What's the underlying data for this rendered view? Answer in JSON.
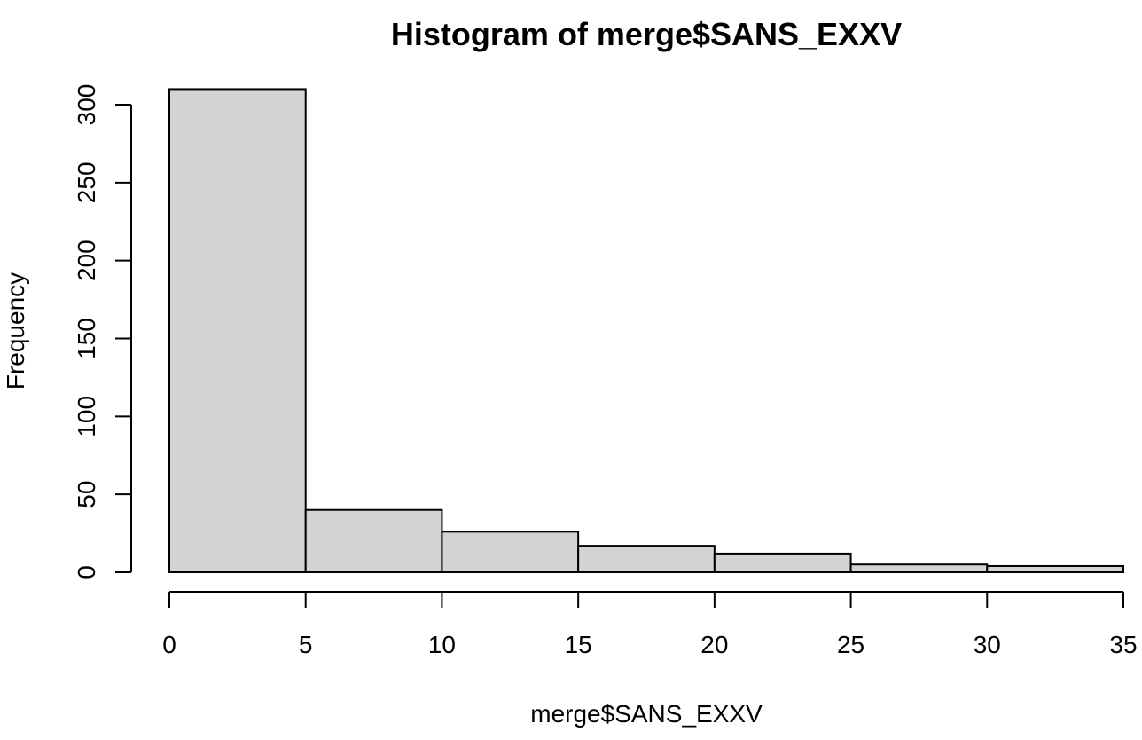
{
  "chart_data": {
    "type": "bar",
    "title": "Histogram of merge$SANS_EXXV",
    "xlabel": "merge$SANS_EXXV",
    "ylabel": "Frequency",
    "bins": [
      {
        "from": 0,
        "to": 5,
        "count": 310
      },
      {
        "from": 5,
        "to": 10,
        "count": 40
      },
      {
        "from": 10,
        "to": 15,
        "count": 26
      },
      {
        "from": 15,
        "to": 20,
        "count": 17
      },
      {
        "from": 20,
        "to": 25,
        "count": 12
      },
      {
        "from": 25,
        "to": 30,
        "count": 5
      },
      {
        "from": 30,
        "to": 35,
        "count": 4
      }
    ],
    "xlim": [
      0,
      35
    ],
    "ylim": [
      0,
      310
    ],
    "x_ticks": [
      0,
      5,
      10,
      15,
      20,
      25,
      30,
      35
    ],
    "y_ticks": [
      0,
      50,
      100,
      150,
      200,
      250,
      300
    ],
    "bar_color": "#d3d3d3",
    "grid": false
  }
}
